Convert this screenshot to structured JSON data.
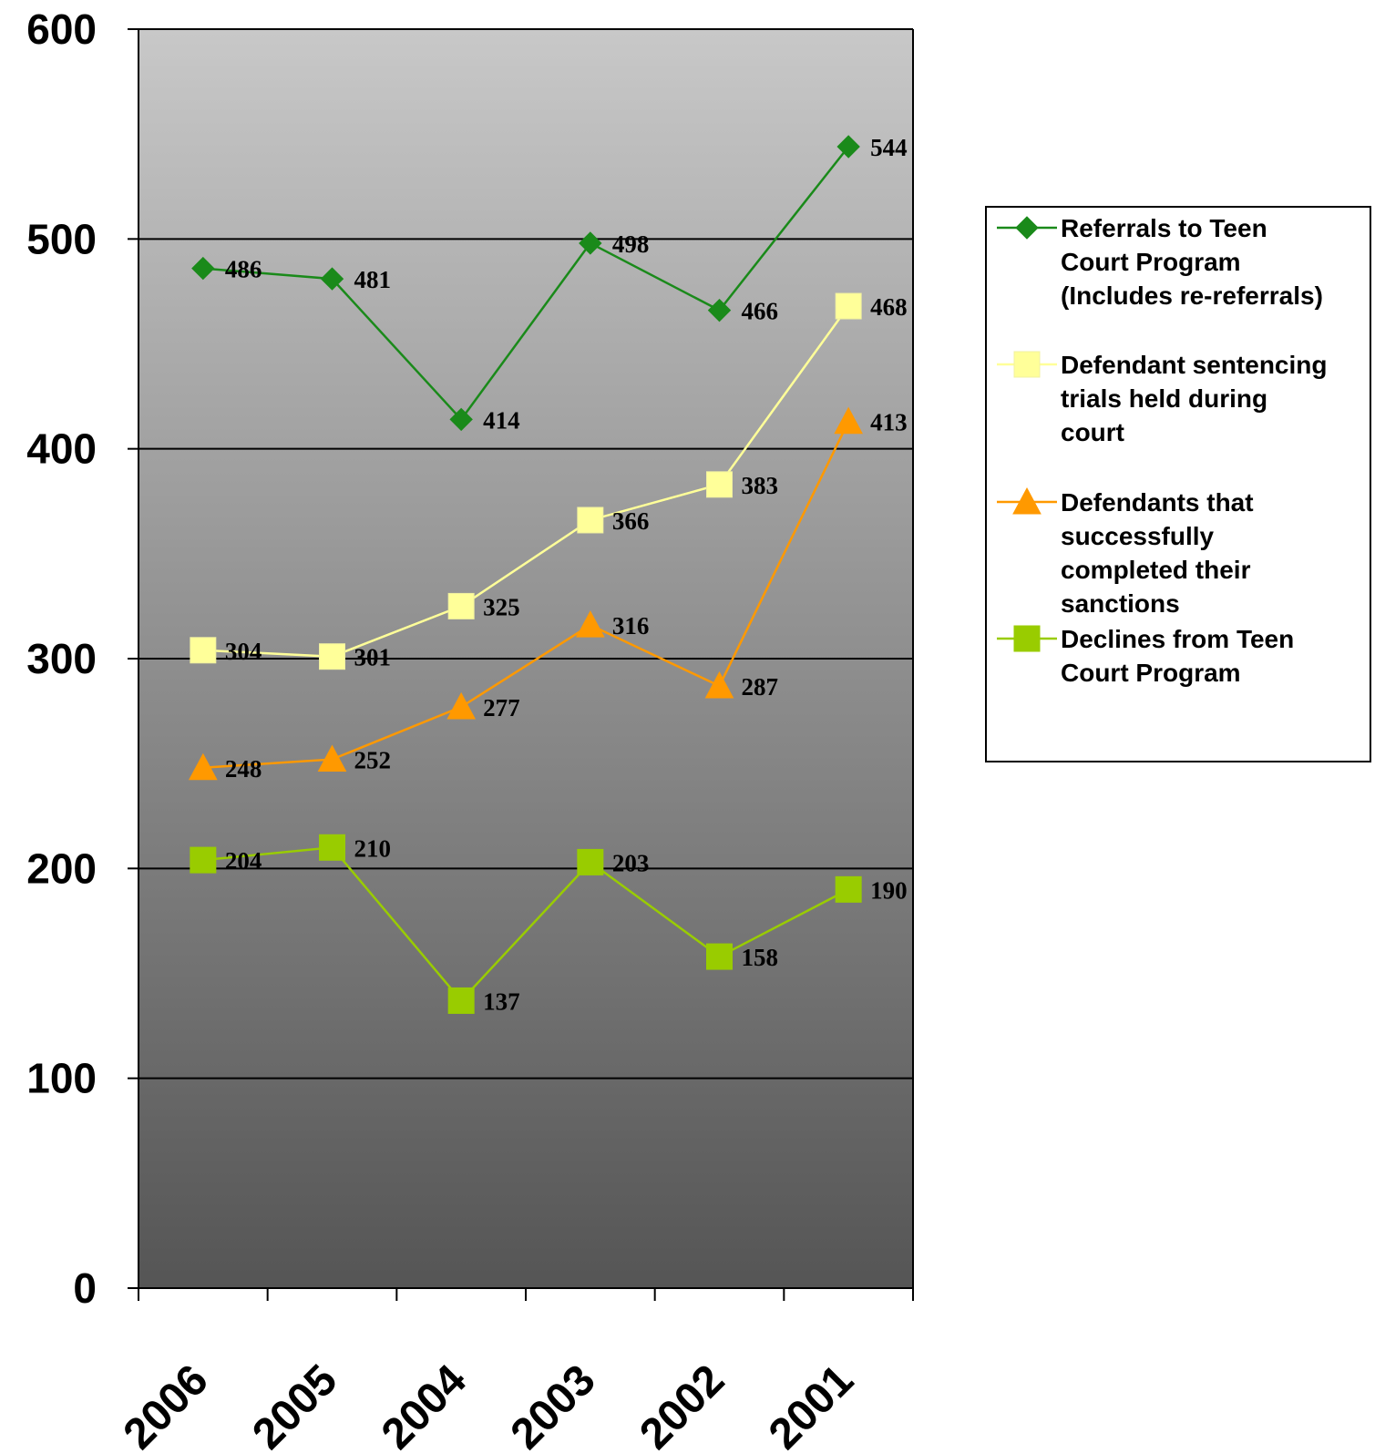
{
  "chart_data": {
    "type": "line",
    "categories": [
      "2006",
      "2005",
      "2004",
      "2003",
      "2002",
      "2001"
    ],
    "ylim": [
      0,
      600
    ],
    "yticks": [
      "0",
      "100",
      "200",
      "300",
      "400",
      "500",
      "600"
    ],
    "grid": true,
    "legend_position": "right",
    "series": [
      {
        "name": "Referrals to Teen Court Program (Includes re-referrals)",
        "legend_lines": [
          "Referrals to Teen",
          "Court Program",
          "(Includes re-referrals)"
        ],
        "values": [
          486,
          481,
          414,
          498,
          466,
          544
        ],
        "color": "#1a8a1a",
        "marker": "diamond"
      },
      {
        "name": "Defendant sentencing trials held during court",
        "legend_lines": [
          "Defendant sentencing",
          "trials held during",
          "court"
        ],
        "values": [
          304,
          301,
          325,
          366,
          383,
          468
        ],
        "color": "#ffff99",
        "marker": "square"
      },
      {
        "name": "Defendants that successfully completed their sanctions",
        "legend_lines": [
          "Defendants that",
          "successfully",
          "completed their",
          "sanctions"
        ],
        "values": [
          248,
          252,
          277,
          316,
          287,
          413
        ],
        "color": "#ff9900",
        "marker": "triangle"
      },
      {
        "name": "Declines from Teen Court Program",
        "legend_lines": [
          "Declines from Teen",
          "Court Program"
        ],
        "values": [
          204,
          210,
          137,
          203,
          158,
          190
        ],
        "color": "#99cc00",
        "marker": "square"
      }
    ],
    "colors": {
      "plot_top": "#c8c8c8",
      "plot_bottom": "#555555"
    }
  }
}
